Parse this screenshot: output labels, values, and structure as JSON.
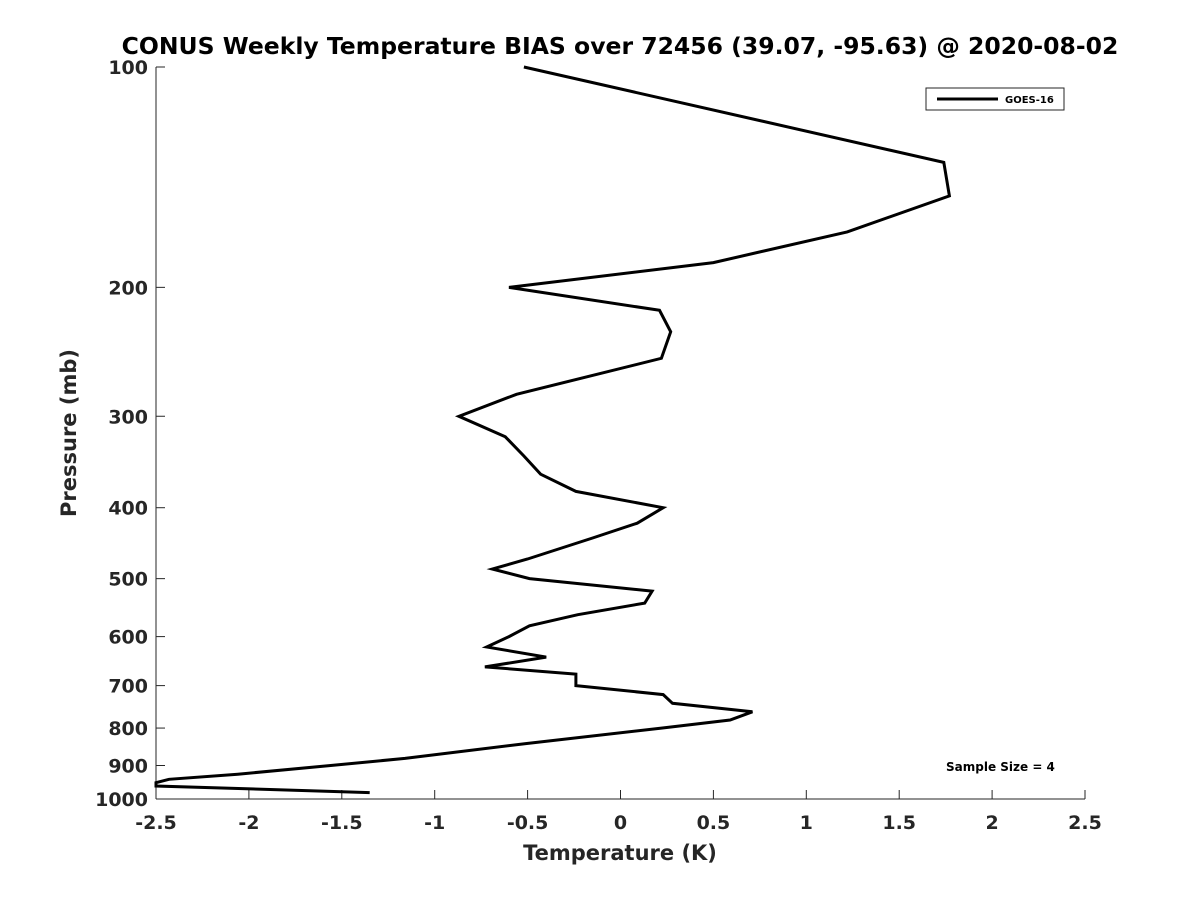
{
  "chart_data": {
    "type": "line",
    "title": "CONUS Weekly Temperature BIAS over 72456 (39.07, -95.63) @ 2020-08-02",
    "xlabel": "Temperature (K)",
    "ylabel": "Pressure (mb)",
    "xlim": [
      -2.5,
      2.5
    ],
    "ylim": [
      1000,
      100
    ],
    "y_scale": "log",
    "x_ticks": [
      "-2.5",
      "-2",
      "-1.5",
      "-1",
      "-0.5",
      "0",
      "0.5",
      "1",
      "1.5",
      "2",
      "2.5"
    ],
    "y_ticks": [
      "100",
      "200",
      "300",
      "400",
      "500",
      "600",
      "700",
      "800",
      "900",
      "1000"
    ],
    "grid": false,
    "legend_position": "top-right",
    "series": [
      {
        "name": "GOES-16",
        "color": "#000000",
        "points": [
          {
            "x": -0.52,
            "p": 100
          },
          {
            "x": 1.74,
            "p": 135
          },
          {
            "x": 1.77,
            "p": 150
          },
          {
            "x": 1.22,
            "p": 168
          },
          {
            "x": 0.5,
            "p": 185
          },
          {
            "x": -0.6,
            "p": 200
          },
          {
            "x": 0.21,
            "p": 215
          },
          {
            "x": 0.27,
            "p": 230
          },
          {
            "x": 0.22,
            "p": 250
          },
          {
            "x": -0.56,
            "p": 280
          },
          {
            "x": -0.87,
            "p": 300
          },
          {
            "x": -0.62,
            "p": 320
          },
          {
            "x": -0.52,
            "p": 340
          },
          {
            "x": -0.43,
            "p": 360
          },
          {
            "x": -0.24,
            "p": 380
          },
          {
            "x": 0.23,
            "p": 400
          },
          {
            "x": 0.09,
            "p": 420
          },
          {
            "x": -0.15,
            "p": 440
          },
          {
            "x": -0.5,
            "p": 470
          },
          {
            "x": -0.69,
            "p": 485
          },
          {
            "x": -0.49,
            "p": 500
          },
          {
            "x": 0.17,
            "p": 520
          },
          {
            "x": 0.13,
            "p": 540
          },
          {
            "x": -0.23,
            "p": 560
          },
          {
            "x": -0.49,
            "p": 580
          },
          {
            "x": -0.6,
            "p": 600
          },
          {
            "x": -0.72,
            "p": 620
          },
          {
            "x": -0.4,
            "p": 640
          },
          {
            "x": -0.73,
            "p": 660
          },
          {
            "x": -0.24,
            "p": 675
          },
          {
            "x": -0.24,
            "p": 700
          },
          {
            "x": 0.23,
            "p": 720
          },
          {
            "x": 0.28,
            "p": 740
          },
          {
            "x": 0.71,
            "p": 760
          },
          {
            "x": 0.59,
            "p": 780
          },
          {
            "x": 0.22,
            "p": 800
          },
          {
            "x": -0.51,
            "p": 840
          },
          {
            "x": -1.16,
            "p": 880
          },
          {
            "x": -1.56,
            "p": 900
          },
          {
            "x": -2.06,
            "p": 925
          },
          {
            "x": -2.43,
            "p": 940
          },
          {
            "x": -2.5,
            "p": 950
          },
          {
            "x": -2.5,
            "p": 960
          },
          {
            "x": -1.35,
            "p": 980
          }
        ]
      }
    ],
    "annotation": "Sample Size = 4"
  }
}
